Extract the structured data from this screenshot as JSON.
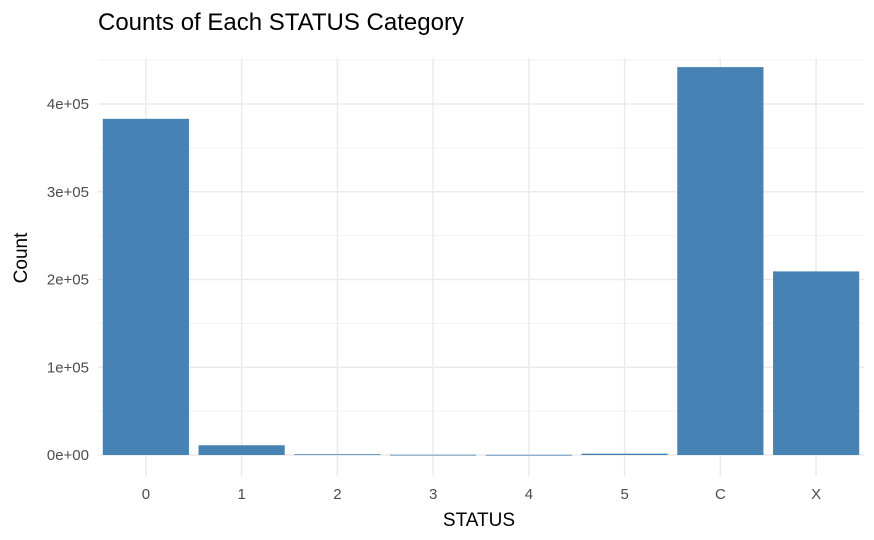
{
  "chart_data": {
    "type": "bar",
    "title": "Counts of Each STATUS Category",
    "xlabel": "STATUS",
    "ylabel": "Count",
    "categories": [
      "0",
      "1",
      "2",
      "3",
      "4",
      "5",
      "C",
      "X"
    ],
    "values": [
      383120,
      11090,
      868,
      320,
      223,
      1527,
      442031,
      209230
    ],
    "ylim": [
      0,
      460000
    ],
    "yticks": [
      0,
      100000,
      200000,
      300000,
      400000
    ],
    "ytick_labels": [
      "0e+00",
      "1e+05",
      "2e+05",
      "3e+05",
      "4e+05"
    ],
    "grid": true,
    "legend": "none",
    "bar_color": "#4682B4"
  }
}
